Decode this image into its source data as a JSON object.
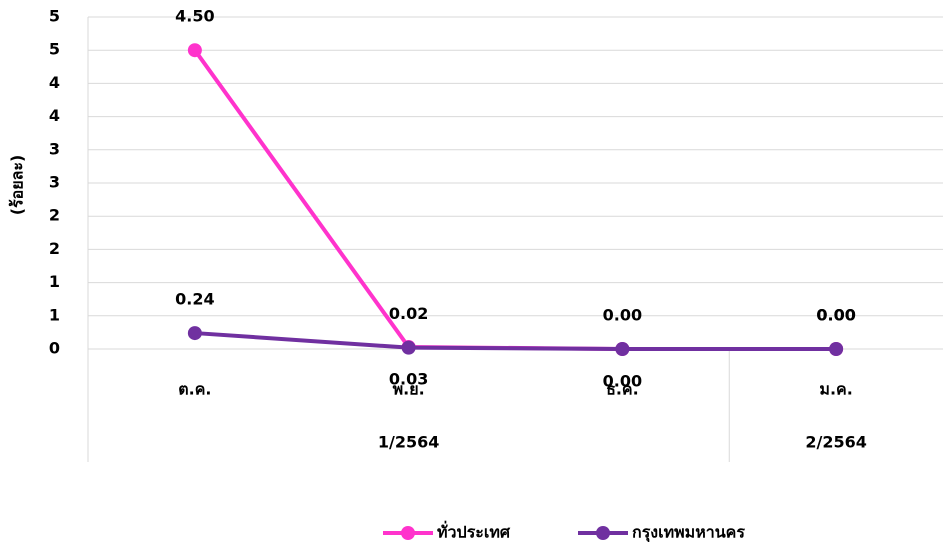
{
  "chart_data": {
    "type": "line",
    "y_label": "(ร้อยละ)",
    "categories": [
      "ต.ค.",
      "พ.ย.",
      "ธ.ค.",
      "ม.ค."
    ],
    "category_groups": [
      "1/2564",
      "1/2564",
      "1/2564",
      "2/2564"
    ],
    "series": [
      {
        "name": "ทั่วประเทศ",
        "color": "#ff33cc",
        "values": [
          4.5,
          0.03,
          0.0,
          0.0
        ],
        "value_labels": [
          "4.50",
          "0.03",
          "0.00",
          "0.00"
        ]
      },
      {
        "name": "กรุงเทพมหานคร",
        "color": "#7030a0",
        "values": [
          0.24,
          0.02,
          0.0,
          0.0
        ],
        "value_labels": [
          "0.24",
          "0.02",
          "0.00",
          "0.00"
        ]
      }
    ],
    "ylim": [
      0,
      5
    ],
    "yticks": [
      0,
      {
        "value": 0.5,
        "label": "1"
      },
      1,
      {
        "value": 1.5,
        "label": "2"
      },
      2,
      {
        "value": 2.5,
        "label": "3"
      },
      3,
      {
        "value": 3.5,
        "label": "4"
      },
      4,
      {
        "value": 4.5,
        "label": "5"
      },
      5
    ],
    "grid": true
  }
}
